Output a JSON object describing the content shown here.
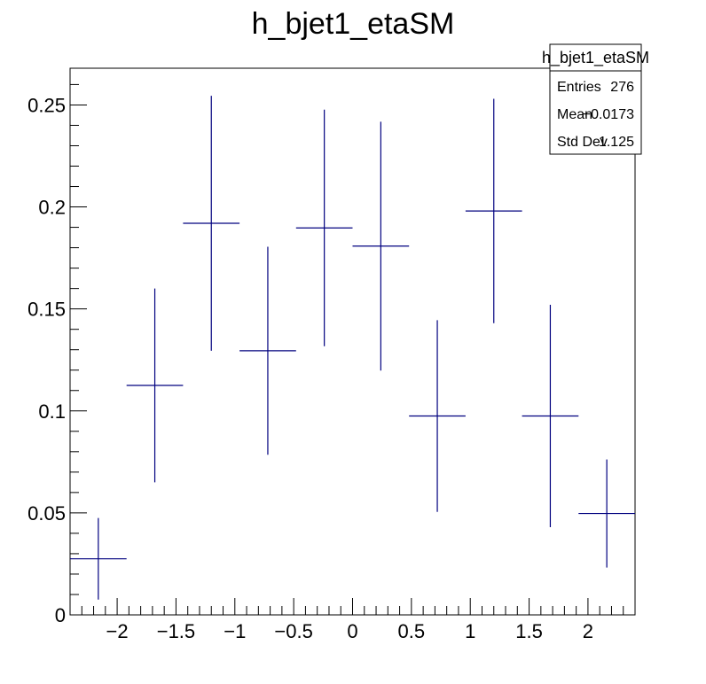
{
  "chart_data": {
    "type": "histogram",
    "title": "h_bjet1_etaSM",
    "xlim": [
      -2.4,
      2.4
    ],
    "ylim": [
      0,
      0.268
    ],
    "x_ticks": [
      -2,
      -1.5,
      -1,
      -0.5,
      0,
      0.5,
      1,
      1.5,
      2
    ],
    "x_tick_labels": [
      "−2",
      "−1.5",
      "−1",
      "−0.5",
      "0",
      "0.5",
      "1",
      "1.5",
      "2"
    ],
    "y_ticks": [
      0,
      0.05,
      0.1,
      0.15,
      0.2,
      0.25
    ],
    "y_tick_labels": [
      "0",
      "0.05",
      "0.1",
      "0.15",
      "0.2",
      "0.25"
    ],
    "bins": [
      {
        "x_low": -2.4,
        "x_high": -1.92,
        "y": 0.0275,
        "err": 0.02
      },
      {
        "x_low": -1.92,
        "x_high": -1.44,
        "y": 0.1125,
        "err": 0.0475
      },
      {
        "x_low": -1.44,
        "x_high": -0.96,
        "y": 0.192,
        "err": 0.0625
      },
      {
        "x_low": -0.96,
        "x_high": -0.48,
        "y": 0.1295,
        "err": 0.051
      },
      {
        "x_low": -0.48,
        "x_high": 0.0,
        "y": 0.1897,
        "err": 0.058
      },
      {
        "x_low": 0.0,
        "x_high": 0.48,
        "y": 0.1808,
        "err": 0.061
      },
      {
        "x_low": 0.48,
        "x_high": 0.96,
        "y": 0.0975,
        "err": 0.047
      },
      {
        "x_low": 0.96,
        "x_high": 1.44,
        "y": 0.198,
        "err": 0.055
      },
      {
        "x_low": 1.44,
        "x_high": 1.92,
        "y": 0.0975,
        "err": 0.0545
      },
      {
        "x_low": 1.92,
        "x_high": 2.4,
        "y": 0.0497,
        "err": 0.0265
      }
    ],
    "line_color": "#00007f",
    "stats": {
      "name": "h_bjet1_etaSM",
      "entries_label": "Entries",
      "entries_value": "276",
      "mean_label": "Mean",
      "mean_value": "−0.0173",
      "stddev_label": "Std Dev",
      "stddev_value": "1.125"
    }
  }
}
